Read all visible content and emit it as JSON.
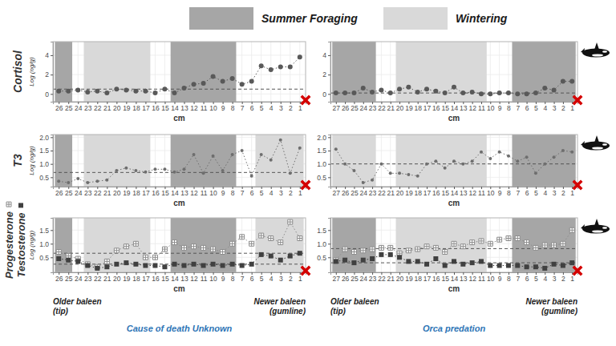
{
  "seasons": [
    {
      "name": "Summer Foraging",
      "color": "#a6a6a6"
    },
    {
      "name": "Wintering",
      "color": "#d9d9d9"
    }
  ],
  "chart_data": [
    {
      "type": "line",
      "y_label": "Cortisol",
      "y_units": "Log (ng/g)",
      "x_label": "cm",
      "x": [
        26,
        25,
        24,
        23,
        22,
        21,
        20,
        19,
        18,
        17,
        16,
        15,
        14,
        13,
        12,
        11,
        10,
        9,
        8,
        7,
        6,
        5,
        4,
        3,
        2,
        1
      ],
      "xlim": [
        26.6,
        0.4
      ],
      "xticks": [
        26,
        25,
        24,
        23,
        22,
        21,
        20,
        19,
        18,
        17,
        16,
        15,
        14,
        13,
        12,
        11,
        10,
        9,
        8,
        7,
        6,
        5,
        4,
        3,
        2,
        1
      ],
      "ylim": [
        -0.8,
        5.4
      ],
      "yticks": [
        0,
        2,
        4
      ],
      "grid": true,
      "regions": [
        {
          "season": 0,
          "from": 26.4,
          "to": 24.6
        },
        {
          "season": 1,
          "from": 23.4,
          "to": 16.5
        },
        {
          "season": 0,
          "from": 14.4,
          "to": 7.6
        }
      ],
      "series": [
        {
          "color": "#595959",
          "marker": "circle",
          "line_style": "dotted",
          "reference": 0.5,
          "values": [
            0.3,
            0.3,
            0.4,
            0.2,
            0.3,
            0.1,
            0.5,
            0.4,
            0.3,
            0.3,
            0.1,
            0.5,
            0.1,
            0.6,
            1.0,
            1.1,
            1.8,
            1.3,
            1.6,
            1.0,
            1.3,
            2.9,
            2.5,
            2.8,
            2.8,
            3.8
          ]
        }
      ]
    },
    {
      "type": "line",
      "x_label": "cm",
      "x": [
        27,
        26,
        25,
        24,
        23,
        22,
        21,
        20,
        19,
        18,
        17,
        16,
        15,
        14,
        13,
        12,
        11,
        10,
        9,
        8,
        7,
        6,
        5,
        4,
        3,
        2,
        1
      ],
      "xlim": [
        27.6,
        0.4
      ],
      "xticks": [
        27,
        26,
        25,
        24,
        23,
        22,
        21,
        20,
        19,
        18,
        17,
        16,
        15,
        14,
        13,
        12,
        11,
        10,
        9,
        8,
        7,
        6,
        5,
        4,
        3,
        2,
        1
      ],
      "ylim": [
        -0.8,
        5.4
      ],
      "yticks": [
        0,
        2,
        4
      ],
      "grid": true,
      "regions": [
        {
          "season": 0,
          "from": 27.4,
          "to": 22.6
        },
        {
          "season": 1,
          "from": 20.4,
          "to": 10.4
        },
        {
          "season": 0,
          "from": 7.6,
          "to": 0.6
        }
      ],
      "series": [
        {
          "color": "#595959",
          "marker": "circle",
          "line_style": "dotted",
          "reference": 0.1,
          "values": [
            0.1,
            0.1,
            0.1,
            0.6,
            0.2,
            0.4,
            0.1,
            0.5,
            0.7,
            0.2,
            0.5,
            0.3,
            0.1,
            0.7,
            0.1,
            0.2,
            0,
            0,
            0.1,
            0.1,
            0,
            0,
            0.1,
            0.6,
            0.4,
            1.3,
            1.3
          ]
        }
      ]
    },
    {
      "type": "line",
      "y_label": "T3",
      "y_units": "Log (ng/g)",
      "x_label": "cm",
      "x": [
        26,
        25,
        24,
        23,
        22,
        21,
        20,
        19,
        18,
        17,
        16,
        15,
        14,
        13,
        12,
        11,
        10,
        9,
        8,
        7,
        6,
        5,
        4,
        3,
        2,
        1
      ],
      "xlim": [
        26.6,
        0.4
      ],
      "xticks": [
        26,
        25,
        24,
        23,
        22,
        21,
        20,
        19,
        18,
        17,
        16,
        15,
        14,
        13,
        12,
        11,
        10,
        9,
        8,
        7,
        6,
        5,
        4,
        3,
        2,
        1
      ],
      "ylim": [
        0.15,
        2.1
      ],
      "yticks": [
        0.5,
        {
          "value": 1,
          "label": "1.0"
        },
        1.5,
        {
          "value": 2,
          "label": "2.0"
        }
      ],
      "grid": true,
      "regions": [
        {
          "season": 0,
          "from": 26.4,
          "to": 24.6
        },
        {
          "season": 1,
          "from": 23.4,
          "to": 16.5
        },
        {
          "season": 0,
          "from": 14.4,
          "to": 7.6
        },
        {
          "season": 1,
          "from": 5.6,
          "to": 0.6
        }
      ],
      "series": [
        {
          "color": "#6e6e6e",
          "marker": "dot",
          "line_style": "dotted",
          "reference": 0.68,
          "values": [
            0.35,
            0.3,
            0.45,
            0.3,
            0.35,
            0.4,
            0.75,
            0.85,
            0.75,
            0.7,
            0.8,
            0.8,
            0.7,
            0.8,
            1.35,
            0.65,
            1.3,
            0.75,
            1.35,
            1.5,
            0.55,
            1.35,
            1.15,
            1.9,
            0.65,
            1.6
          ]
        }
      ]
    },
    {
      "type": "line",
      "x_label": "cm",
      "x": [
        27,
        26,
        25,
        24,
        23,
        22,
        21,
        20,
        19,
        18,
        17,
        16,
        15,
        14,
        13,
        12,
        11,
        10,
        9,
        8,
        7,
        6,
        5,
        4,
        3,
        2,
        1
      ],
      "xlim": [
        27.6,
        0.4
      ],
      "xticks": [
        27,
        26,
        25,
        24,
        23,
        22,
        21,
        20,
        19,
        18,
        17,
        16,
        15,
        14,
        13,
        12,
        11,
        10,
        9,
        8,
        7,
        6,
        5,
        4,
        3,
        2,
        1
      ],
      "ylim": [
        0.15,
        2.1
      ],
      "yticks": [
        0.5,
        {
          "value": 1,
          "label": "1.0"
        },
        1.5,
        {
          "value": 2,
          "label": "2.0"
        }
      ],
      "grid": true,
      "regions": [
        {
          "season": 1,
          "from": 27.4,
          "to": 22.6
        },
        {
          "season": 1,
          "from": 20.4,
          "to": 10.4
        },
        {
          "season": 0,
          "from": 7.6,
          "to": 0.6
        }
      ],
      "series": [
        {
          "color": "#6e6e6e",
          "marker": "dot",
          "line_style": "dotted",
          "reference": 1.0,
          "values": [
            1.55,
            1.0,
            0.75,
            0.3,
            0.4,
            1.0,
            0.65,
            0.65,
            0.6,
            0.55,
            1.0,
            1.1,
            0.85,
            1.1,
            1.0,
            1.1,
            1.45,
            1.2,
            1.45,
            1.3,
            1.1,
            1.25,
            0.65,
            1.0,
            1.25,
            1.5,
            1.45
          ]
        }
      ]
    },
    {
      "type": "line",
      "y_units": "Log (ng/g)",
      "x_label": "cm",
      "x": [
        26,
        25,
        24,
        23,
        22,
        21,
        20,
        19,
        18,
        17,
        16,
        15,
        14,
        13,
        12,
        11,
        10,
        9,
        8,
        7,
        6,
        5,
        4,
        3,
        2,
        1
      ],
      "xlim": [
        26.6,
        0.4
      ],
      "xticks": [
        26,
        25,
        24,
        23,
        22,
        21,
        20,
        19,
        18,
        17,
        16,
        15,
        14,
        13,
        12,
        11,
        10,
        9,
        8,
        7,
        6,
        5,
        4,
        3,
        2,
        1
      ],
      "ylim": [
        -0.05,
        1.95
      ],
      "yticks": [
        0.5,
        {
          "value": 1,
          "label": "1.0"
        },
        1.5
      ],
      "grid": true,
      "regions": [
        {
          "season": 0,
          "from": 26.4,
          "to": 24.6
        },
        {
          "season": 1,
          "from": 23.4,
          "to": 16.5
        },
        {
          "season": 0,
          "from": 14.4,
          "to": 7.6
        },
        {
          "season": 1,
          "from": 5.6,
          "to": 0.6
        }
      ],
      "captions": [
        "Older baleen (tip)",
        "Cause of death Unknown",
        "Newer baleen (gumline)"
      ],
      "series": [
        {
          "name": "Progesterone",
          "color": "#8c8c8c",
          "marker": "plus_square",
          "line_style": "dotted",
          "reference": 0.65,
          "values": [
            0.7,
            0.55,
            0.45,
            0.25,
            0.15,
            0.35,
            0.75,
            0.9,
            1.0,
            0.5,
            0.5,
            0.8,
            1.05,
            0.85,
            0.9,
            0.85,
            0.8,
            0.7,
            1.0,
            1.25,
            1.0,
            1.3,
            1.2,
            1.05,
            1.8,
            1.2
          ]
        },
        {
          "name": "Testosterone",
          "color": "#404040",
          "marker": "square",
          "line_style": "dotted",
          "reference": 0.25,
          "values": [
            0.45,
            0.4,
            0.35,
            0.2,
            0.1,
            0.15,
            0.25,
            0.3,
            0.25,
            0.2,
            0.2,
            0.15,
            0.25,
            0.2,
            0.25,
            0.2,
            0.25,
            0.2,
            0.25,
            0.2,
            0.25,
            0.6,
            0.55,
            0.4,
            0.55,
            0.65
          ]
        }
      ]
    },
    {
      "type": "line",
      "x_label": "cm",
      "x": [
        27,
        26,
        25,
        24,
        23,
        22,
        21,
        20,
        19,
        18,
        17,
        16,
        15,
        14,
        13,
        12,
        11,
        10,
        9,
        8,
        7,
        6,
        5,
        4,
        3,
        2,
        1
      ],
      "xlim": [
        27.6,
        0.4
      ],
      "xticks": [
        27,
        26,
        25,
        24,
        23,
        22,
        21,
        20,
        19,
        18,
        17,
        16,
        15,
        14,
        13,
        12,
        11,
        10,
        9,
        8,
        7,
        6,
        5,
        4,
        3,
        2,
        1
      ],
      "ylim": [
        -0.05,
        1.95
      ],
      "yticks": [
        0.5,
        {
          "value": 1,
          "label": "1.0"
        },
        1.5
      ],
      "grid": true,
      "regions": [
        {
          "season": 0,
          "from": 27.4,
          "to": 22.6
        },
        {
          "season": 1,
          "from": 20.4,
          "to": 10.4
        },
        {
          "season": 0,
          "from": 7.6,
          "to": 0.6
        }
      ],
      "captions": [
        "Older baleen (tip)",
        "Orca predation",
        "Newer baleen (gumline)"
      ],
      "series": [
        {
          "color": "#8c8c8c",
          "marker": "plus_square",
          "line_style": "dotted",
          "reference": 0.82,
          "values": [
            0.4,
            0.8,
            0.7,
            0.75,
            0.8,
            0.85,
            0.85,
            0.65,
            0.75,
            0.8,
            0.9,
            0.85,
            0.7,
            1.0,
            0.9,
            1.05,
            1.1,
            1.0,
            1.15,
            1.2,
            1.2,
            1.05,
            0.85,
            0.95,
            0.95,
            1.0,
            1.5
          ]
        },
        {
          "color": "#404040",
          "marker": "square",
          "line_style": "dotted",
          "reference": 0.3,
          "values": [
            0.35,
            0.4,
            0.3,
            0.4,
            0.45,
            0.6,
            0.6,
            0.5,
            0.35,
            0.35,
            0.25,
            0.45,
            0.2,
            0.35,
            0.25,
            0.3,
            0.35,
            0.2,
            0.2,
            0.2,
            0.2,
            0.15,
            0.15,
            0.1,
            0.25,
            0.2,
            0.3
          ]
        }
      ]
    }
  ]
}
